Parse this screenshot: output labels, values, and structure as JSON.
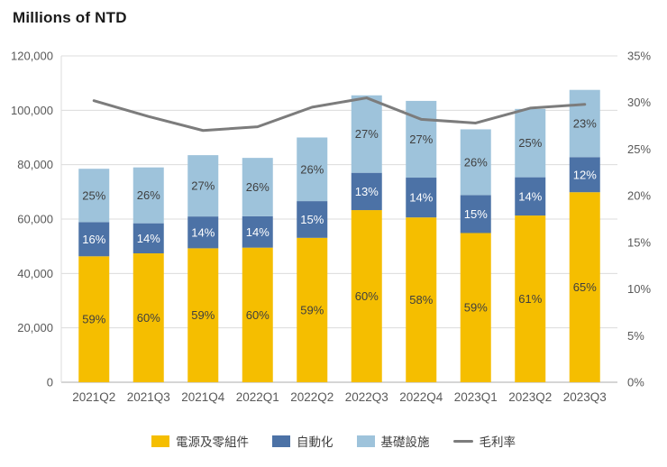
{
  "title": "Millions of NTD",
  "chart_data": {
    "type": "bar",
    "subtype": "stacked-bar-with-line",
    "categories": [
      "2021Q2",
      "2021Q3",
      "2021Q4",
      "2022Q1",
      "2022Q2",
      "2022Q3",
      "2022Q4",
      "2023Q1",
      "2023Q2",
      "2023Q3"
    ],
    "bar_totals_millions_ntd": [
      78500,
      79000,
      83500,
      82500,
      90000,
      105500,
      104500,
      93000,
      100500,
      107500
    ],
    "series": [
      {
        "name": "電源及零組件",
        "type": "bar",
        "color": "#F5BE00",
        "label_color": "#3F3F3F",
        "pct": [
          59,
          60,
          59,
          60,
          59,
          60,
          58,
          59,
          61,
          65
        ]
      },
      {
        "name": "自動化",
        "type": "bar",
        "color": "#4C72A6",
        "label_color": "#FFFFFF",
        "pct": [
          16,
          14,
          14,
          14,
          15,
          13,
          14,
          15,
          14,
          12
        ]
      },
      {
        "name": "基礎設施",
        "type": "bar",
        "color": "#9EC3DB",
        "label_color": "#3F3F3F",
        "pct": [
          25,
          26,
          27,
          26,
          26,
          27,
          27,
          26,
          25,
          23
        ]
      },
      {
        "name": "毛利率",
        "type": "line",
        "color": "#7C7C7C",
        "values_pct": [
          30.2,
          28.5,
          27.0,
          27.4,
          29.5,
          30.5,
          28.2,
          27.8,
          29.4,
          29.8
        ]
      }
    ],
    "left_axis": {
      "min": 0,
      "max": 120000,
      "step": 20000,
      "labels": [
        "0",
        "20,000",
        "40,000",
        "60,000",
        "80,000",
        "100,000",
        "120,000"
      ]
    },
    "right_axis": {
      "min": 0,
      "max": 35,
      "step": 5,
      "labels": [
        "0%",
        "5%",
        "10%",
        "15%",
        "20%",
        "25%",
        "30%",
        "35%"
      ]
    },
    "grid": true,
    "legend_position": "bottom"
  },
  "legend": {
    "items": [
      {
        "label": "電源及零組件",
        "color": "#F5BE00",
        "shape": "square"
      },
      {
        "label": "自動化",
        "color": "#4C72A6",
        "shape": "square"
      },
      {
        "label": "基礎設施",
        "color": "#9EC3DB",
        "shape": "square"
      },
      {
        "label": "毛利率",
        "color": "#7C7C7C",
        "shape": "line"
      }
    ]
  }
}
